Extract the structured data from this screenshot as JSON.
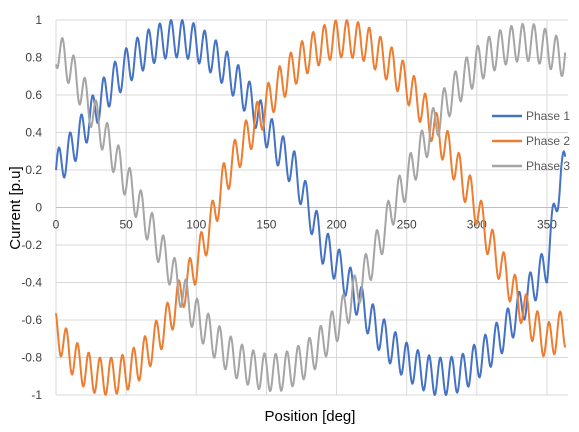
{
  "chart_data": {
    "type": "line",
    "title": "",
    "xlabel": "Position [deg]",
    "ylabel": "Current [p.u]",
    "xlim": [
      0,
      365
    ],
    "ylim": [
      -1,
      1
    ],
    "xticks": [
      0,
      50,
      100,
      150,
      200,
      250,
      300,
      350
    ],
    "yticks": [
      -1,
      -0.8,
      -0.6,
      -0.4,
      -0.2,
      0,
      0.2,
      0.4,
      0.6,
      0.8,
      1
    ],
    "grid": true,
    "legend_position": "right",
    "series": [
      {
        "name": "Phase 1",
        "color": "#4472c4",
        "x": [
          0,
          10,
          20,
          30,
          40,
          50,
          60,
          70,
          80,
          90,
          100,
          110,
          120,
          130,
          140,
          150,
          160,
          170,
          180,
          190,
          200,
          210,
          220,
          230,
          240,
          250,
          260,
          270,
          280,
          290,
          300,
          310,
          320,
          330,
          340,
          350,
          360
        ],
        "y": [
          0.2,
          0.3,
          0.42,
          0.55,
          0.66,
          0.75,
          0.82,
          0.87,
          0.9,
          0.9,
          0.88,
          0.82,
          0.75,
          0.66,
          0.55,
          0.42,
          0.3,
          0.2,
          0.0,
          -0.2,
          -0.3,
          -0.42,
          -0.55,
          -0.66,
          -0.75,
          -0.82,
          -0.87,
          -0.9,
          -0.9,
          -0.88,
          -0.82,
          -0.75,
          -0.66,
          -0.55,
          -0.42,
          -0.3,
          0.2
        ],
        "ripple_amplitude": 0.1,
        "ripple_period_deg": 8
      },
      {
        "name": "Phase 2",
        "color": "#ed7d31",
        "x": [
          0,
          10,
          20,
          30,
          40,
          50,
          60,
          70,
          80,
          90,
          100,
          110,
          120,
          130,
          140,
          150,
          160,
          170,
          180,
          190,
          200,
          210,
          220,
          230,
          240,
          250,
          260,
          270,
          280,
          290,
          300,
          310,
          320,
          330,
          340,
          350,
          360
        ],
        "y": [
          -0.65,
          -0.78,
          -0.86,
          -0.9,
          -0.9,
          -0.88,
          -0.82,
          -0.72,
          -0.6,
          -0.45,
          -0.3,
          -0.1,
          0.15,
          0.3,
          0.42,
          0.55,
          0.66,
          0.75,
          0.82,
          0.87,
          0.9,
          0.9,
          0.88,
          0.82,
          0.75,
          0.66,
          0.55,
          0.42,
          0.3,
          0.15,
          0.0,
          -0.2,
          -0.35,
          -0.5,
          -0.62,
          -0.72,
          -0.65
        ],
        "ripple_amplitude": 0.1,
        "ripple_period_deg": 8
      },
      {
        "name": "Phase 3",
        "color": "#a5a5a5",
        "x": [
          0,
          10,
          20,
          30,
          40,
          50,
          60,
          70,
          80,
          90,
          100,
          110,
          120,
          130,
          140,
          150,
          160,
          170,
          180,
          190,
          200,
          210,
          220,
          230,
          240,
          250,
          260,
          270,
          280,
          290,
          300,
          310,
          320,
          330,
          340,
          350,
          360
        ],
        "y": [
          0.85,
          0.75,
          0.6,
          0.45,
          0.3,
          0.15,
          0.0,
          -0.15,
          -0.3,
          -0.45,
          -0.58,
          -0.68,
          -0.76,
          -0.82,
          -0.86,
          -0.88,
          -0.88,
          -0.85,
          -0.8,
          -0.72,
          -0.62,
          -0.5,
          -0.36,
          -0.2,
          0.0,
          0.15,
          0.3,
          0.45,
          0.58,
          0.68,
          0.76,
          0.82,
          0.86,
          0.88,
          0.88,
          0.85,
          0.8
        ],
        "ripple_amplitude": 0.1,
        "ripple_period_deg": 8
      }
    ]
  }
}
